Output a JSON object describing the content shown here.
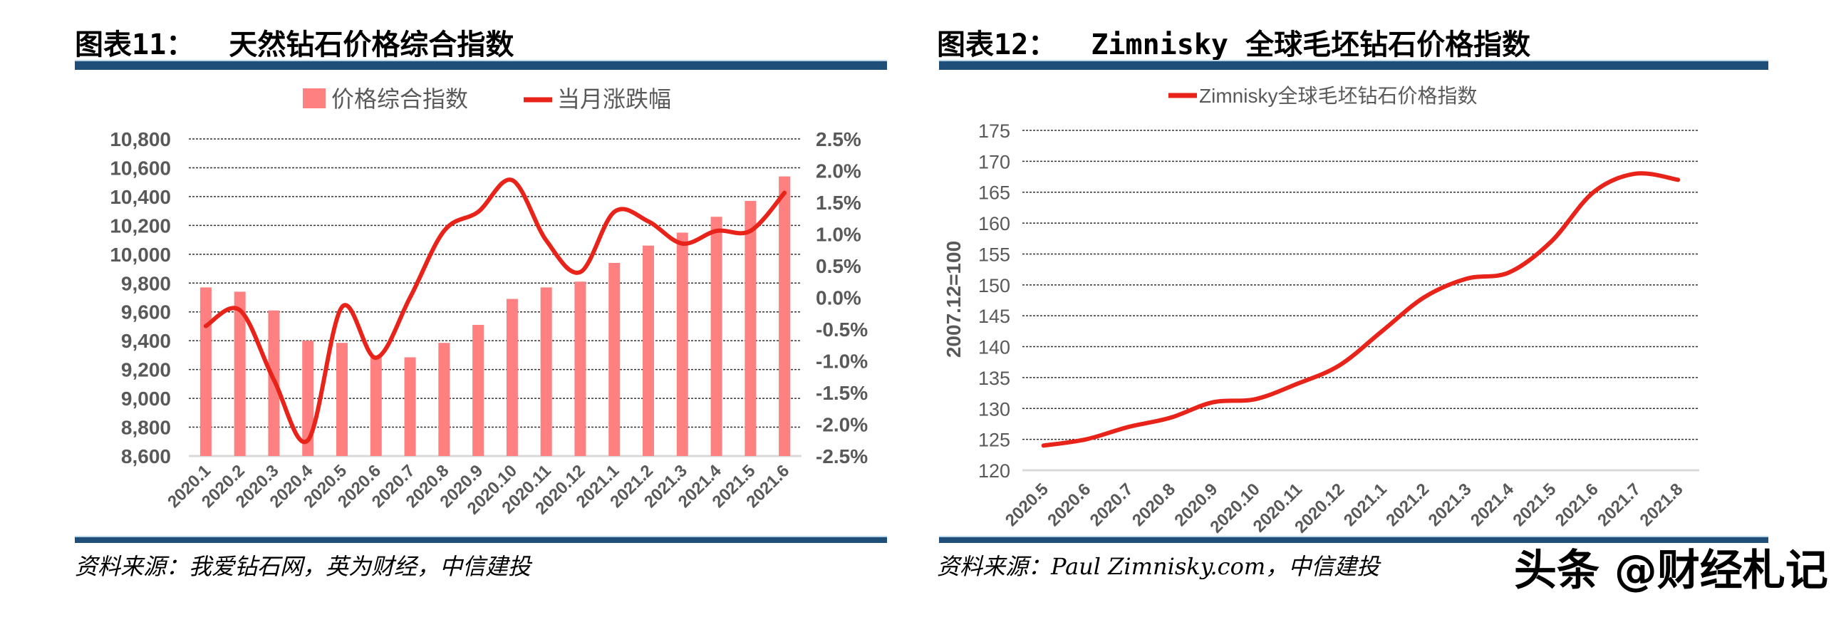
{
  "left": {
    "title": "图表11：  天然钻石价格综合指数",
    "source": "资料来源：我爱钻石网，英为财经，中信建投"
  },
  "right": {
    "title": "图表12：  Zimnisky 全球毛坯钻石价格指数",
    "source": "资料来源：Paul Zimnisky.com，中信建投"
  },
  "watermark": "头条 @财经札记",
  "colors": {
    "bar": "#ff8080",
    "line": "#e8231a",
    "rule": "#1f4e79"
  },
  "chart_data": [
    {
      "type": "bar+line",
      "legend": [
        "价格综合指数",
        "当月涨跌幅"
      ],
      "legend_position": "top",
      "grid": true,
      "categories": [
        "2020.1",
        "2020.2",
        "2020.3",
        "2020.4",
        "2020.5",
        "2020.6",
        "2020.7",
        "2020.8",
        "2020.9",
        "2020.10",
        "2020.11",
        "2020.12",
        "2021.1",
        "2021.2",
        "2021.3",
        "2021.4",
        "2021.5",
        "2021.6"
      ],
      "series": [
        {
          "name": "价格综合指数",
          "type": "bar",
          "axis": "left",
          "values": [
            9770,
            9740,
            9610,
            9400,
            9385,
            9290,
            9285,
            9385,
            9510,
            9690,
            9770,
            9810,
            9940,
            10060,
            10150,
            10260,
            10370,
            10540
          ]
        },
        {
          "name": "当月涨跌幅",
          "type": "line",
          "axis": "right",
          "values": [
            -0.45,
            -0.2,
            -1.3,
            -2.25,
            -0.15,
            -0.95,
            0.0,
            1.05,
            1.35,
            1.85,
            0.9,
            0.4,
            1.35,
            1.2,
            0.85,
            1.05,
            1.05,
            1.65
          ]
        }
      ],
      "ylim": [
        8600,
        10800
      ],
      "yticks": [
        "8,600",
        "8,800",
        "9,000",
        "9,200",
        "9,400",
        "9,600",
        "9,800",
        "10,000",
        "10,200",
        "10,400",
        "10,600",
        "10,800"
      ],
      "y2lim": [
        -2.5,
        2.5
      ],
      "y2ticks": [
        "-2.5%",
        "-2.0%",
        "-1.5%",
        "-1.0%",
        "-0.5%",
        "0.0%",
        "0.5%",
        "1.0%",
        "1.5%",
        "2.0%",
        "2.5%"
      ]
    },
    {
      "type": "line",
      "legend": [
        "Zimnisky全球毛坯钻石价格指数"
      ],
      "legend_position": "top",
      "grid": true,
      "ylabel": "2007.12=100",
      "categories": [
        "2020.5",
        "2020.6",
        "2020.7",
        "2020.8",
        "2020.9",
        "2020.10",
        "2020.11",
        "2020.12",
        "2021.1",
        "2021.2",
        "2021.3",
        "2021.4",
        "2021.5",
        "2021.6",
        "2021.7",
        "2021.8"
      ],
      "series": [
        {
          "name": "Zimnisky全球毛坯钻石价格指数",
          "values": [
            124,
            125,
            127,
            128.5,
            131,
            131.5,
            134,
            137,
            142.5,
            148,
            151,
            152,
            157,
            165,
            168,
            167
          ]
        }
      ],
      "ylim": [
        120,
        175
      ],
      "yticks": [
        "120",
        "125",
        "130",
        "135",
        "140",
        "145",
        "150",
        "155",
        "160",
        "165",
        "170",
        "175"
      ]
    }
  ]
}
